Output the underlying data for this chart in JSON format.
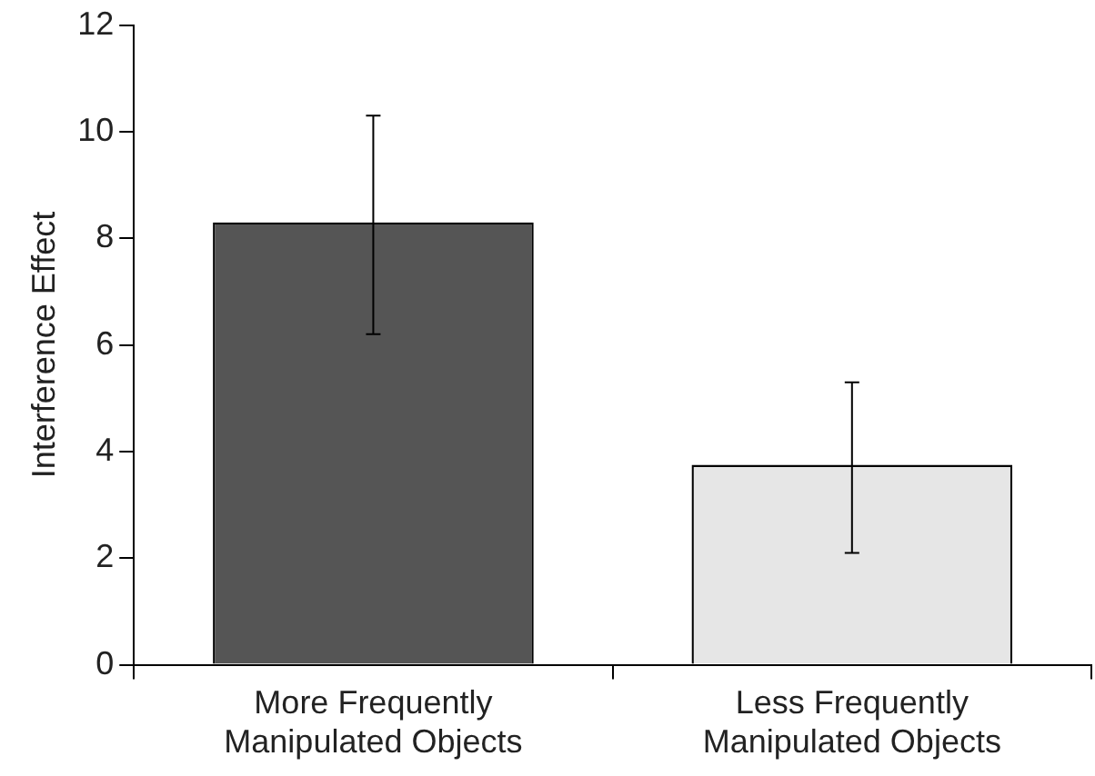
{
  "chart_data": {
    "type": "bar",
    "ylabel": "Interference Effect",
    "categories": [
      "More Frequently Manipulated Objects",
      "Less Frequently Manipulated Objects"
    ],
    "values": [
      8.3,
      3.75
    ],
    "errors": [
      [
        6.2,
        10.3
      ],
      [
        2.1,
        5.3
      ]
    ],
    "colors": [
      "#555555",
      "#e6e6e6"
    ],
    "ylim": [
      0,
      12
    ],
    "yticks": [
      0,
      2,
      4,
      6,
      8,
      10,
      12
    ],
    "grid": false,
    "legend": false
  }
}
